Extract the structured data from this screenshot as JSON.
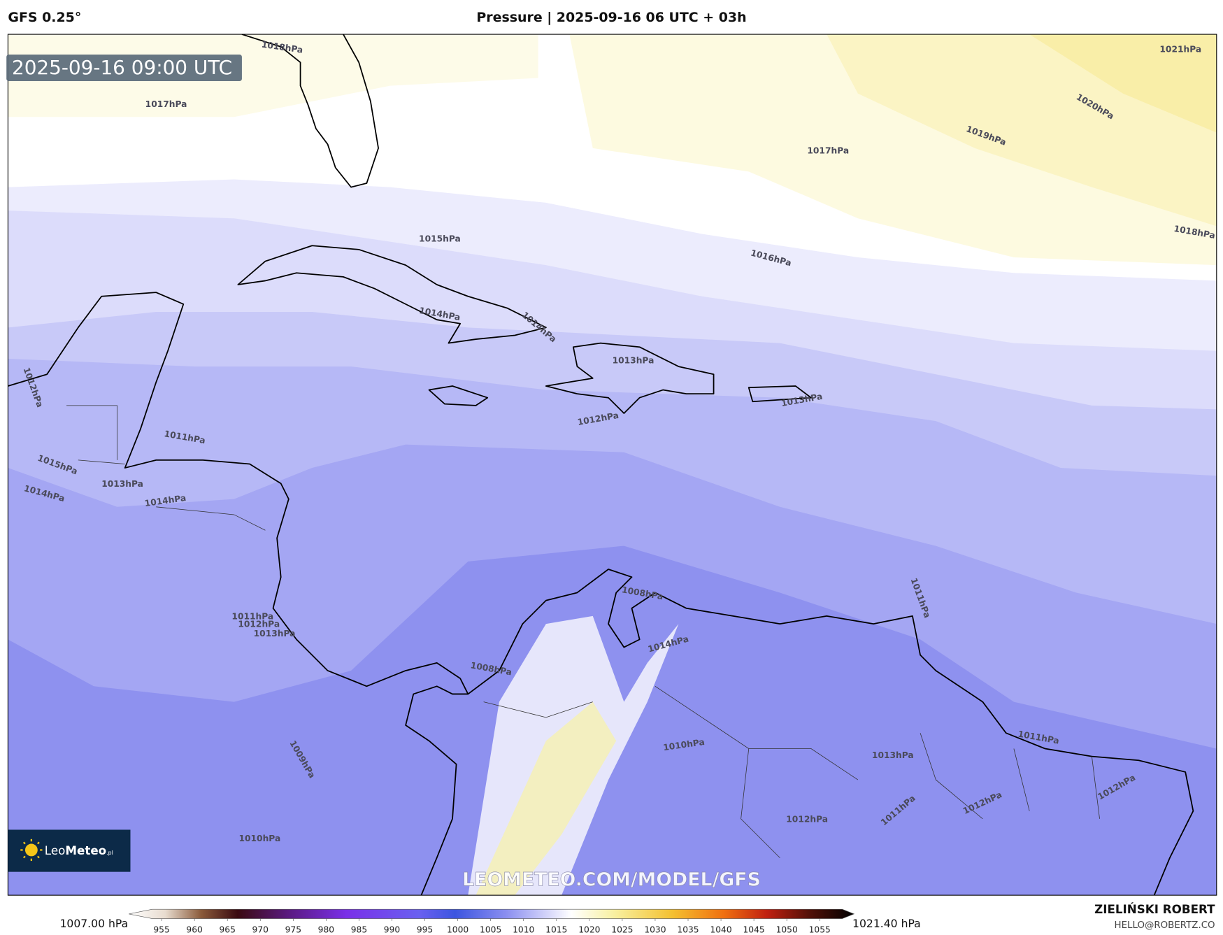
{
  "header": {
    "model": "GFS 0.25°",
    "title": "Pressure | 2025-09-16 06 UTC + 03h"
  },
  "map": {
    "timestamp": "2025-09-16 09:00 UTC",
    "contour_labels": [
      "1018hPa",
      "1017hPa",
      "1021hPa",
      "1020hPa",
      "1019hPa",
      "1017hPa",
      "1018hPa",
      "1016hPa",
      "1015hPa",
      "1014hPa",
      "1014hPa",
      "1013hPa",
      "1013hPa",
      "1012hPa",
      "1011hPa",
      "1012hPa",
      "1015hPa",
      "1013hPa",
      "1014hPa",
      "1014hPa",
      "1008hPa",
      "1011hPa",
      "1012hPa",
      "1013hPa",
      "1014hPa",
      "1008hPa",
      "1010hPa",
      "1009hPa",
      "1011hPa",
      "1013hPa",
      "1012hPa",
      "1012hPa",
      "1012hPa",
      "1011hPa",
      "1010hPa",
      "1011hPa"
    ],
    "watermark": "LEOMETEO.COM/MODEL/GFS",
    "logo": {
      "brand_light": "Leo",
      "brand_bold": "Meteo",
      "suffix": ".pl"
    }
  },
  "colorbar": {
    "min_label": "1007.00 hPa",
    "max_label": "1021.40 hPa",
    "ticks": [
      955,
      960,
      965,
      970,
      975,
      980,
      985,
      990,
      995,
      1000,
      1005,
      1010,
      1015,
      1020,
      1025,
      1030,
      1035,
      1040,
      1045,
      1050,
      1055
    ]
  },
  "footer": {
    "author": "ZIELIŃSKI ROBERT",
    "email": "HELLO@ROBERTZ.CO"
  }
}
